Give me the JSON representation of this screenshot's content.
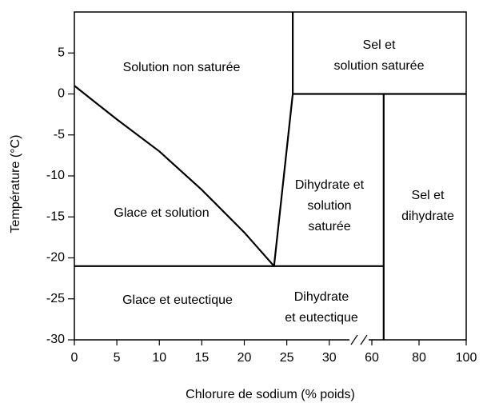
{
  "chart_data": {
    "type": "line",
    "x_label": "Chlorure de sodium (% poids)",
    "y_label": "Température (°C)",
    "xlim": [
      0,
      100
    ],
    "xbreak": [
      32,
      60
    ],
    "ylim": [
      -30,
      10
    ],
    "xticks": [
      0,
      5,
      10,
      15,
      20,
      25,
      30,
      60,
      80,
      100
    ],
    "yticks": [
      5,
      0,
      -5,
      -10,
      -15,
      -20,
      -25,
      -30
    ],
    "series": [
      {
        "color": "#000000",
        "x": [
          0,
          5,
          10,
          15,
          20,
          23.5
        ],
        "values": [
          1,
          -3.1,
          -7,
          -11.7,
          -16.9,
          -21
        ]
      },
      {
        "color": "#000000",
        "x": [
          23.5,
          25.7,
          25.7
        ],
        "values": [
          -21,
          0,
          10
        ]
      },
      {
        "color": "#000000",
        "x": [
          25.7,
          100
        ],
        "values": [
          0,
          0
        ]
      },
      {
        "color": "#000000",
        "x": [
          0,
          65
        ],
        "values": [
          -21,
          -21
        ]
      },
      {
        "color": "#000000",
        "x": [
          65,
          65
        ],
        "values": [
          0,
          -30
        ]
      }
    ],
    "annotations": [
      [
        "Solution non saturée"
      ],
      [
        "Sel et",
        "solution saturée"
      ],
      [
        "Dihydrate et",
        "solution",
        "saturée"
      ],
      [
        "Sel et",
        "dihydrate"
      ],
      [
        "Glace et solution"
      ],
      [
        "Glace et eutectique"
      ],
      [
        "Dihydrate",
        "et eutectique"
      ]
    ]
  }
}
